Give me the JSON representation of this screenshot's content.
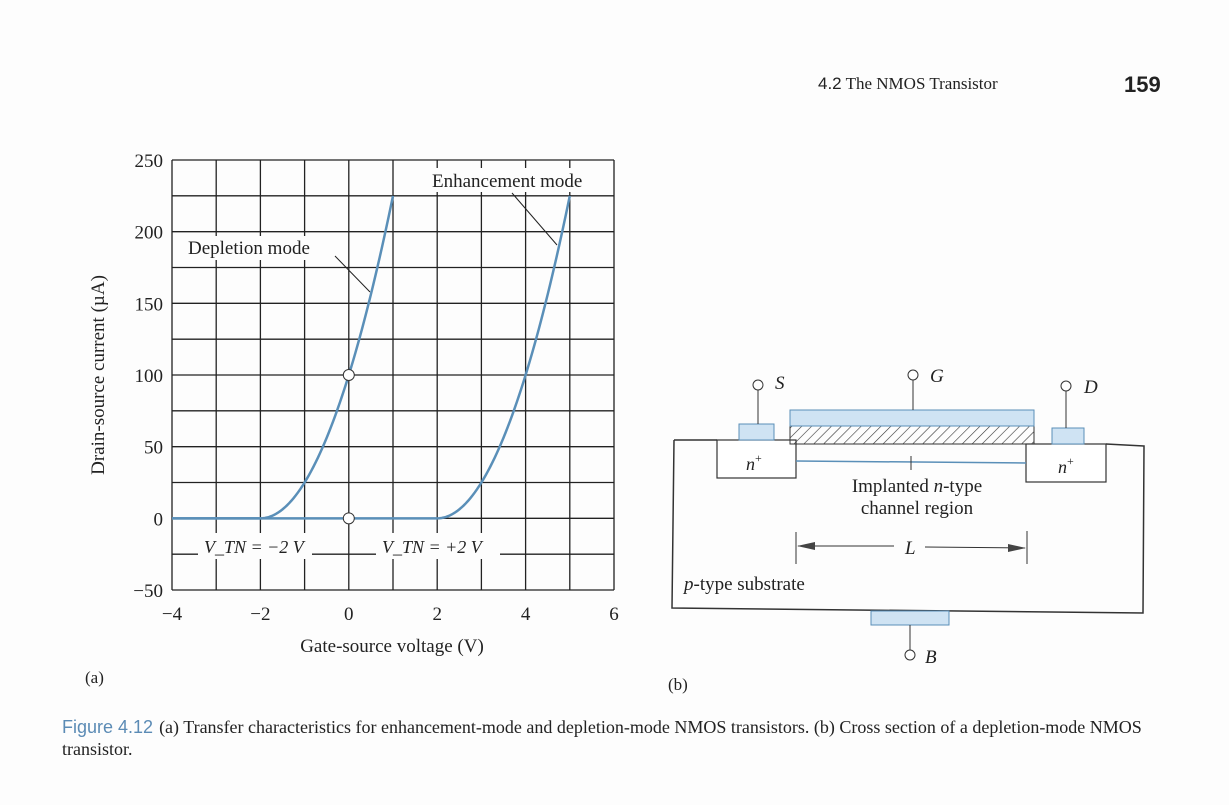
{
  "header": {
    "section_number": "4.2",
    "section_title": "The NMOS Transistor",
    "page_number": "159"
  },
  "colors": {
    "curve": "#5a8fb8",
    "fill": "#cfe3f3",
    "caption_accent": "#5b8bb5"
  },
  "panel_labels": {
    "a": "(a)",
    "b": "(b)"
  },
  "chart_data": {
    "type": "line",
    "xlabel": "Gate-source voltage (V)",
    "ylabel": "Drain-source current (µA)",
    "xlim": [
      -4,
      6
    ],
    "ylim": [
      -50,
      250
    ],
    "xticks": [
      "−4",
      "−2",
      "0",
      "2",
      "4",
      "6"
    ],
    "xtick_values": [
      -4,
      -2,
      0,
      2,
      4,
      6
    ],
    "yticks": [
      "250",
      "200",
      "150",
      "100",
      "50",
      "0",
      "−50"
    ],
    "ytick_values": [
      250,
      200,
      150,
      100,
      50,
      0,
      -50
    ],
    "grid": true,
    "series": [
      {
        "name": "Depletion mode",
        "threshold": -2,
        "x": [
          -4,
          -3,
          -2,
          -1.5,
          -1,
          -0.5,
          0,
          0.5,
          1
        ],
        "y": [
          0,
          0,
          0,
          6.25,
          25,
          56.25,
          100,
          156.25,
          225
        ]
      },
      {
        "name": "Enhancement mode",
        "threshold": 2,
        "x": [
          -4,
          0,
          2,
          2.5,
          3,
          3.5,
          4,
          4.5,
          5
        ],
        "y": [
          0,
          0,
          0,
          6.25,
          25,
          56.25,
          100,
          156.25,
          225
        ]
      }
    ],
    "markers": [
      {
        "x": 0,
        "y": 100
      },
      {
        "x": 0,
        "y": 0
      }
    ],
    "annotations": {
      "depletion": "Depletion mode",
      "enhancement": "Enhancement mode",
      "vtn_dep": "V_TN = −2 V",
      "vtn_enh": "V_TN = +2 V"
    }
  },
  "diagram": {
    "source": "S",
    "gate": "G",
    "drain": "D",
    "body": "B",
    "n_plus": "n",
    "plus": "+",
    "channel_line1_a": "Implanted ",
    "channel_line1_n": "n",
    "channel_line1_b": "-type",
    "channel_line2": "channel region",
    "length": "L",
    "substrate_p": "p",
    "substrate_rest": "-type substrate"
  },
  "caption": {
    "figure": "Figure 4.12",
    "text": "(a) Transfer characteristics for enhancement-mode and depletion-mode NMOS transistors. (b) Cross section of a depletion-mode NMOS transistor."
  }
}
